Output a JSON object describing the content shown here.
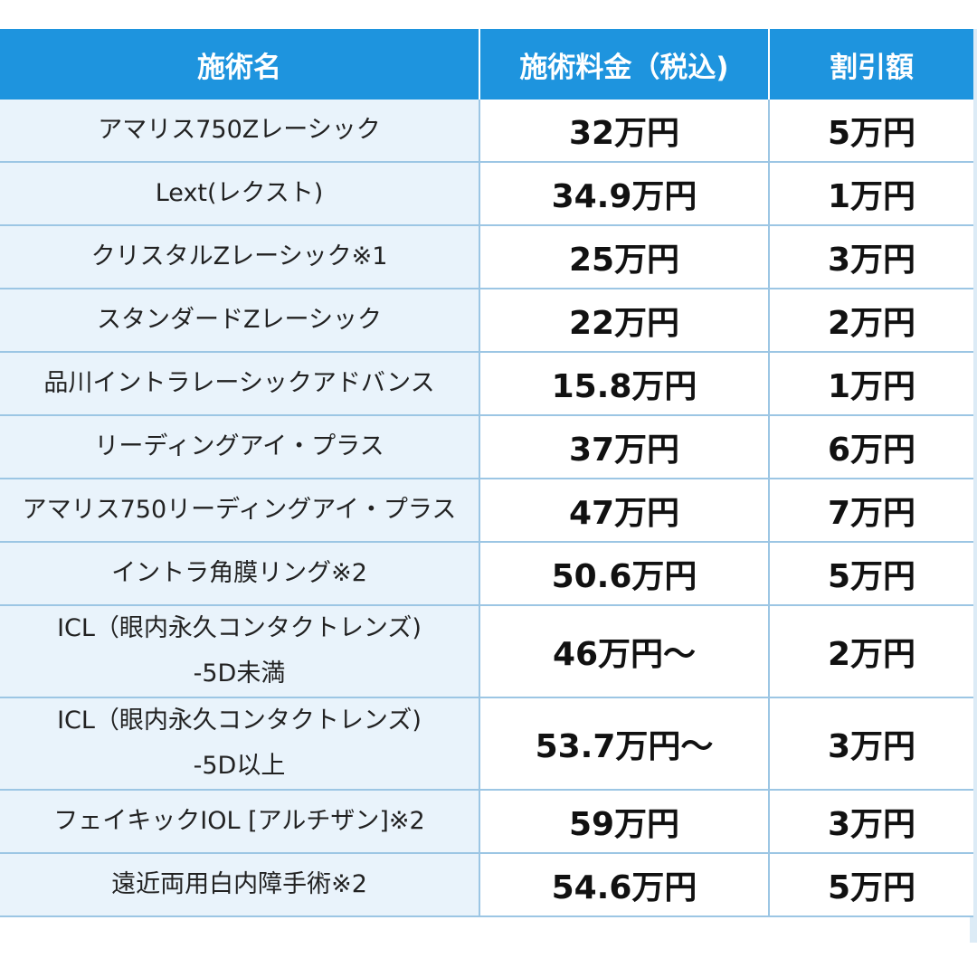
{
  "table": {
    "headers": {
      "name": "施術名",
      "price": "施術料金（税込)",
      "discount": "割引額"
    },
    "rows": [
      {
        "name": "アマリス750Zレーシック",
        "sub": "",
        "price": "32万円",
        "discount": "5万円"
      },
      {
        "name": "Lext(レクスト)",
        "sub": "",
        "price": "34.9万円",
        "discount": "1万円"
      },
      {
        "name": "クリスタルZレーシック※1",
        "sub": "",
        "price": "25万円",
        "discount": "3万円"
      },
      {
        "name": "スタンダードZレーシック",
        "sub": "",
        "price": "22万円",
        "discount": "2万円"
      },
      {
        "name": "品川イントラレーシックアドバンス",
        "sub": "",
        "price": "15.8万円",
        "discount": "1万円"
      },
      {
        "name": "リーディングアイ・プラス",
        "sub": "",
        "price": "37万円",
        "discount": "6万円"
      },
      {
        "name": "アマリス750リーディングアイ・プラス",
        "sub": "",
        "price": "47万円",
        "discount": "7万円"
      },
      {
        "name": "イントラ角膜リング※2",
        "sub": "",
        "price": "50.6万円",
        "discount": "5万円"
      },
      {
        "name": "ICL（眼内永久コンタクトレンズ)",
        "sub": "-5D未満",
        "price": "46万円〜",
        "discount": "2万円"
      },
      {
        "name": "ICL（眼内永久コンタクトレンズ)",
        "sub": "-5D以上",
        "price": "53.7万円〜",
        "discount": "3万円"
      },
      {
        "name": "フェイキックIOL [アルチザン]※2",
        "sub": "",
        "price": "59万円",
        "discount": "3万円"
      },
      {
        "name": "遠近両用白内障手術※2",
        "sub": "",
        "price": "54.6万円",
        "discount": "5万円"
      }
    ]
  }
}
